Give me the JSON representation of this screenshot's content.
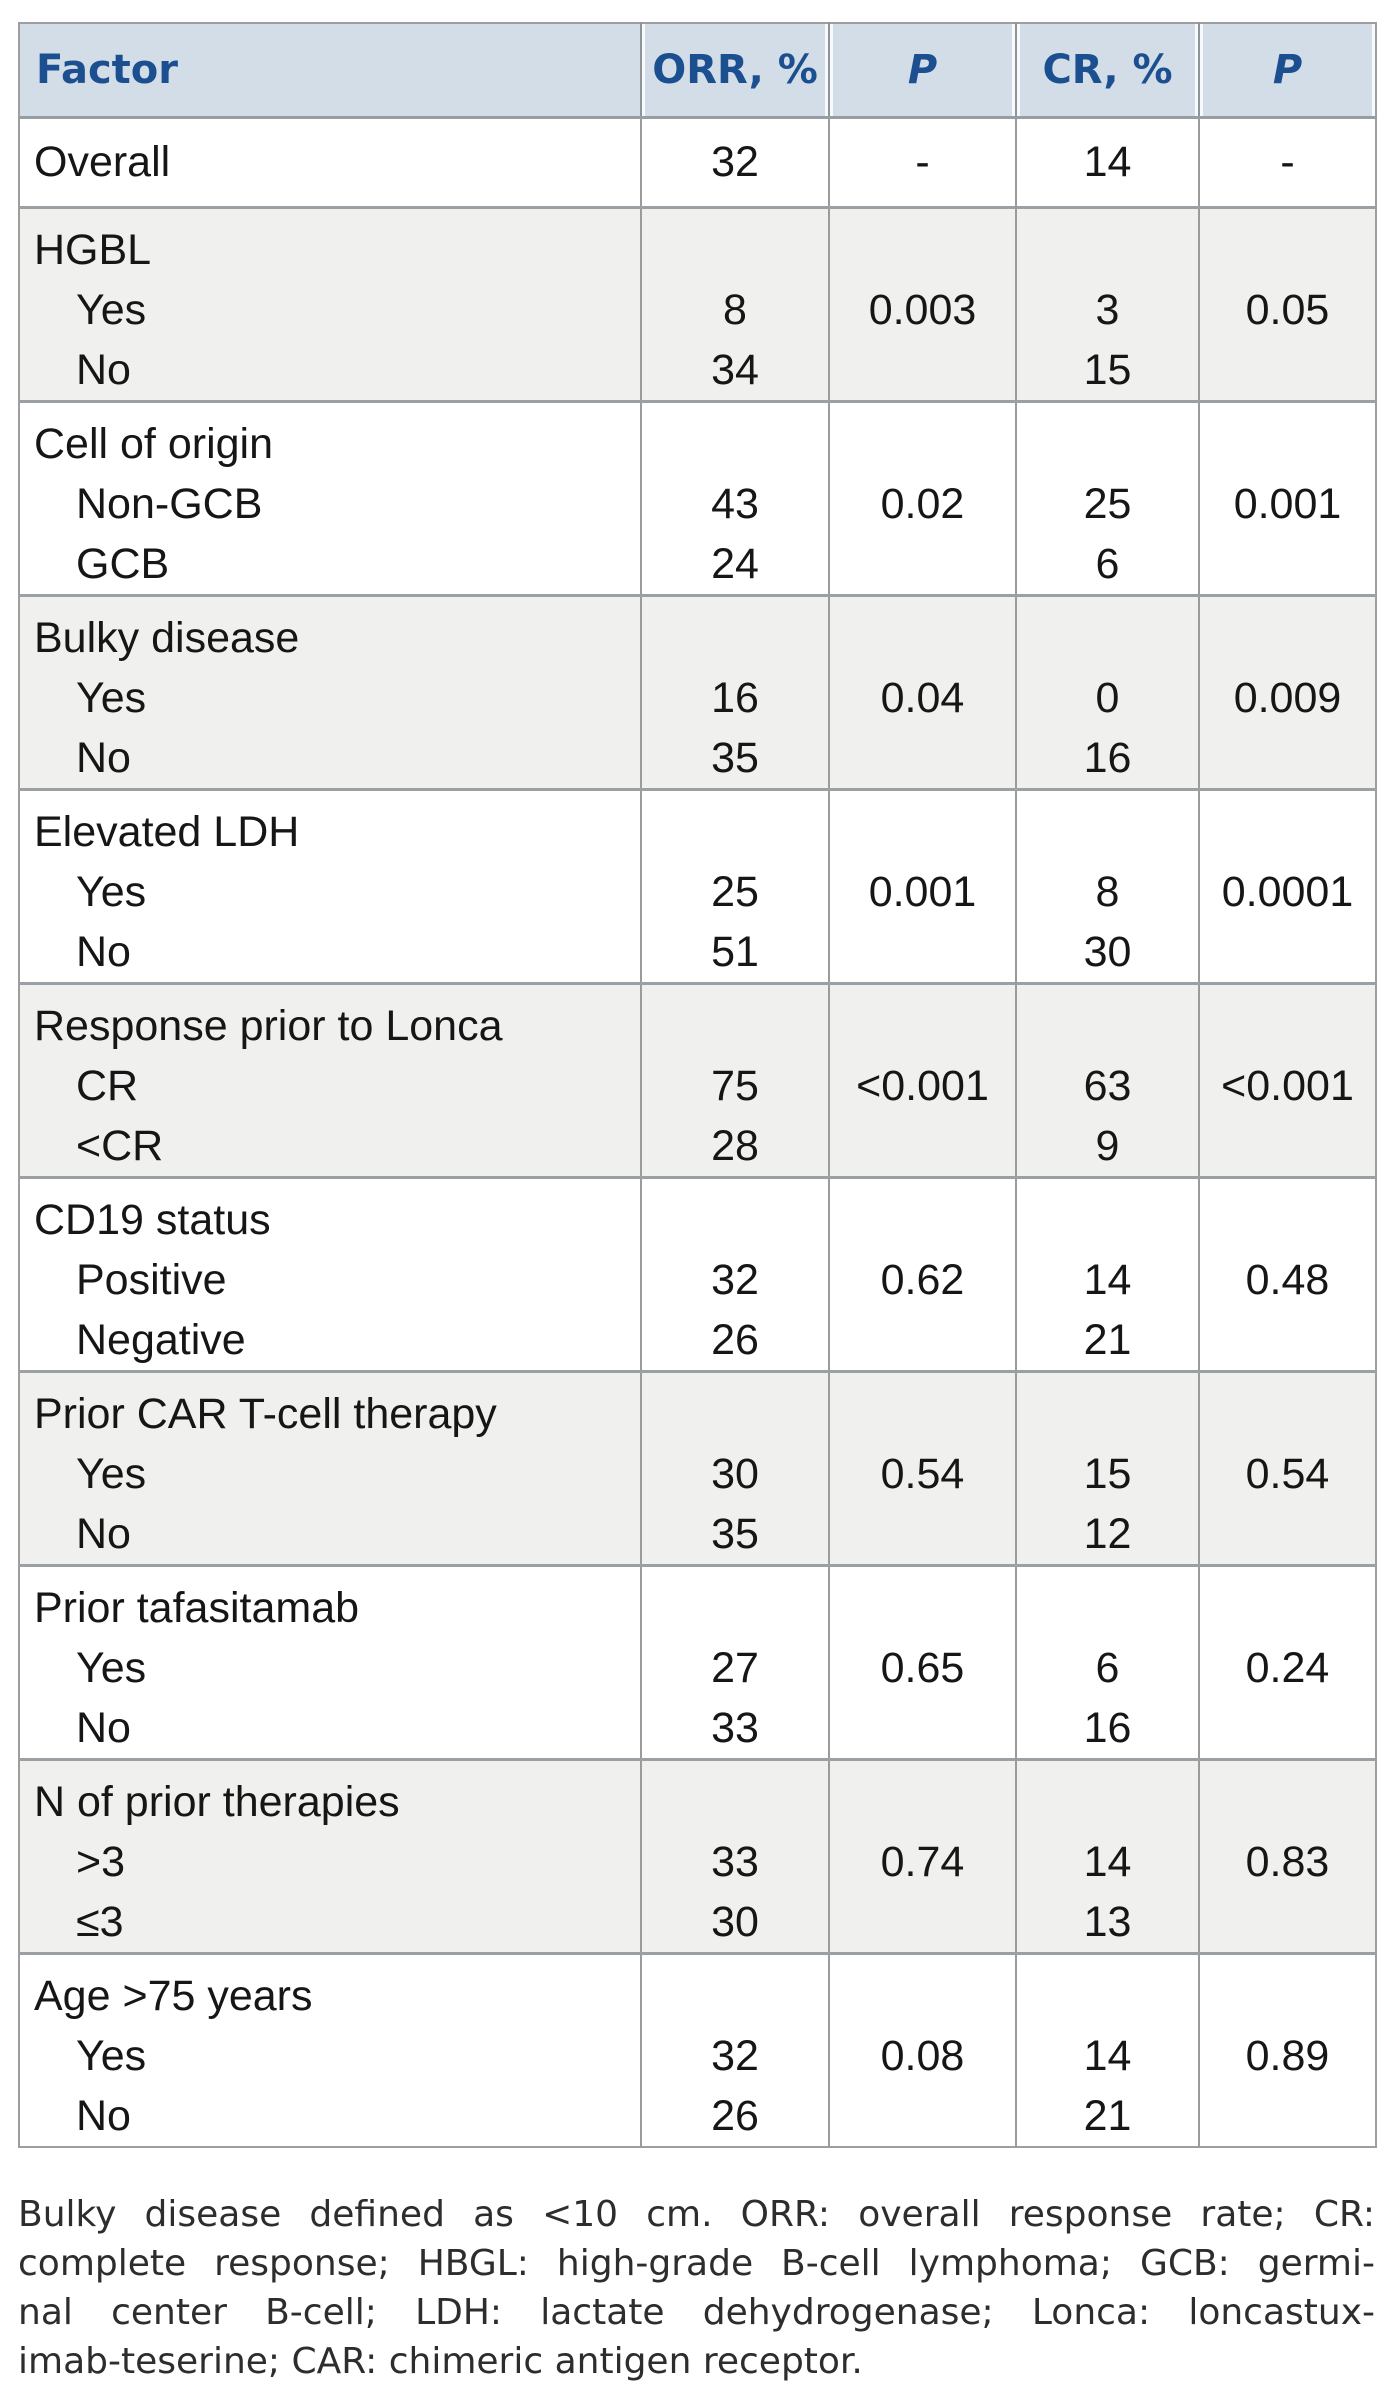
{
  "colors": {
    "header_bg": "#d3dde8",
    "header_text": "#1b4f8f",
    "shaded_row_bg": "#f0f0ef",
    "row_bg": "#ffffff",
    "grid_line": "#9b9b9b",
    "body_text": "#161616"
  },
  "table": {
    "columns": [
      {
        "key": "factor",
        "label": "Factor",
        "italic": false
      },
      {
        "key": "orr",
        "label": "ORR, %",
        "italic": false
      },
      {
        "key": "p1",
        "label": "P",
        "italic": true
      },
      {
        "key": "cr",
        "label": "CR, %",
        "italic": false
      },
      {
        "key": "p2",
        "label": "P",
        "italic": true
      }
    ],
    "rows": [
      {
        "factor": "Overall",
        "sublabels": [],
        "orr": [
          "32"
        ],
        "p1": "-",
        "cr": [
          "14"
        ],
        "p2": "-",
        "shaded": false
      },
      {
        "factor": "HGBL",
        "sublabels": [
          "Yes",
          "No"
        ],
        "orr": [
          "8",
          "34"
        ],
        "p1": "0.003",
        "cr": [
          "3",
          "15"
        ],
        "p2": "0.05",
        "shaded": true
      },
      {
        "factor": "Cell of origin",
        "sublabels": [
          "Non-GCB",
          "GCB"
        ],
        "orr": [
          "43",
          "24"
        ],
        "p1": "0.02",
        "cr": [
          "25",
          "6"
        ],
        "p2": "0.001",
        "shaded": false
      },
      {
        "factor": "Bulky disease",
        "sublabels": [
          "Yes",
          "No"
        ],
        "orr": [
          "16",
          "35"
        ],
        "p1": "0.04",
        "cr": [
          "0",
          "16"
        ],
        "p2": "0.009",
        "shaded": true
      },
      {
        "factor": "Elevated LDH",
        "sublabels": [
          "Yes",
          "No"
        ],
        "orr": [
          "25",
          "51"
        ],
        "p1": "0.001",
        "cr": [
          "8",
          "30"
        ],
        "p2": "0.0001",
        "shaded": false
      },
      {
        "factor": "Response prior to Lonca",
        "sublabels": [
          "CR",
          "<CR"
        ],
        "orr": [
          "75",
          "28"
        ],
        "p1": "<0.001",
        "cr": [
          "63",
          "9"
        ],
        "p2": "<0.001",
        "shaded": true
      },
      {
        "factor": "CD19 status",
        "sublabels": [
          "Positive",
          "Negative"
        ],
        "orr": [
          "32",
          "26"
        ],
        "p1": "0.62",
        "cr": [
          "14",
          "21"
        ],
        "p2": "0.48",
        "shaded": false
      },
      {
        "factor": "Prior CAR T-cell therapy",
        "sublabels": [
          "Yes",
          "No"
        ],
        "orr": [
          "30",
          "35"
        ],
        "p1": "0.54",
        "cr": [
          "15",
          "12"
        ],
        "p2": "0.54",
        "shaded": true
      },
      {
        "factor": "Prior tafasitamab",
        "sublabels": [
          "Yes",
          "No"
        ],
        "orr": [
          "27",
          "33"
        ],
        "p1": "0.65",
        "cr": [
          "6",
          "16"
        ],
        "p2": "0.24",
        "shaded": false
      },
      {
        "factor": "N of prior therapies",
        "sublabels": [
          ">3",
          "≤3"
        ],
        "orr": [
          "33",
          "30"
        ],
        "p1": "0.74",
        "cr": [
          "14",
          "13"
        ],
        "p2": "0.83",
        "shaded": true
      },
      {
        "factor": "Age >75 years",
        "sublabels": [
          "Yes",
          "No"
        ],
        "orr": [
          "32",
          "26"
        ],
        "p1": "0.08",
        "cr": [
          "14",
          "21"
        ],
        "p2": "0.89",
        "shaded": false
      }
    ]
  },
  "footnote": {
    "text": "Bulky disease defined as <10 cm. ORR: overall response rate; CR: complete response; HBGL: high-grade B-cell lymphoma; GCB: germinal center B-cell; LDH: lactate dehydrogenase; Lonca: loncastuximab-teserine; CAR: chimeric antigen receptor.",
    "lines": [
      "Bulky disease defined as <10 cm. ORR: overall response rate; CR:",
      "complete response; HBGL: high-grade B-cell lymphoma; GCB: germi-",
      "nal center B-cell; LDH: lactate dehydrogenase; Lonca: loncastux-",
      "imab-teserine; CAR: chimeric antigen receptor."
    ]
  }
}
